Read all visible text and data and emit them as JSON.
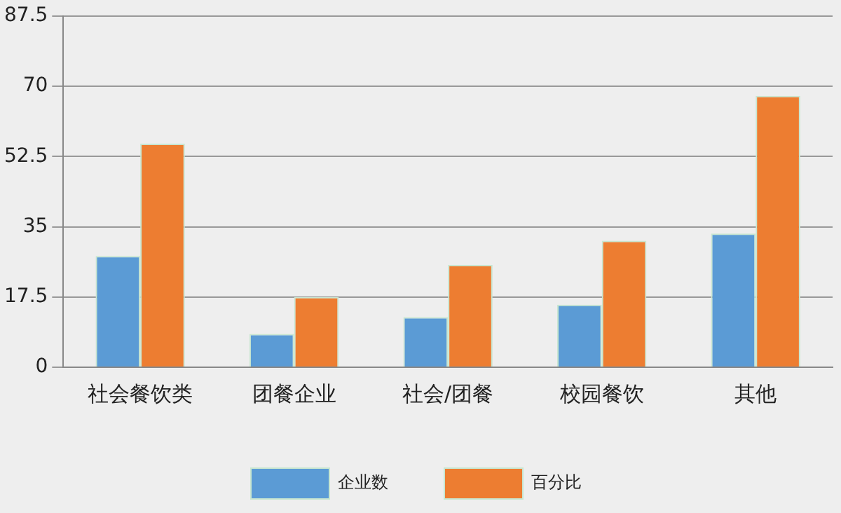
{
  "chart_data": {
    "type": "bar",
    "categories": [
      "社会餐饮类",
      "团餐企业",
      "社会/团餐",
      "校园餐饮",
      "其他"
    ],
    "series": [
      {
        "name": "企业数",
        "color": "#5b9bd5",
        "values": [
          27.7,
          8.3,
          12.5,
          15.6,
          33.3
        ]
      },
      {
        "name": "百分比",
        "color": "#ed7d31",
        "values": [
          55.7,
          17.5,
          25.5,
          31.5,
          67.6
        ]
      }
    ],
    "ylim": [
      0,
      87.5
    ],
    "yticks": [
      0,
      17.5,
      35,
      52.5,
      70,
      87.5
    ],
    "grid": "y",
    "legend": "bottom"
  }
}
